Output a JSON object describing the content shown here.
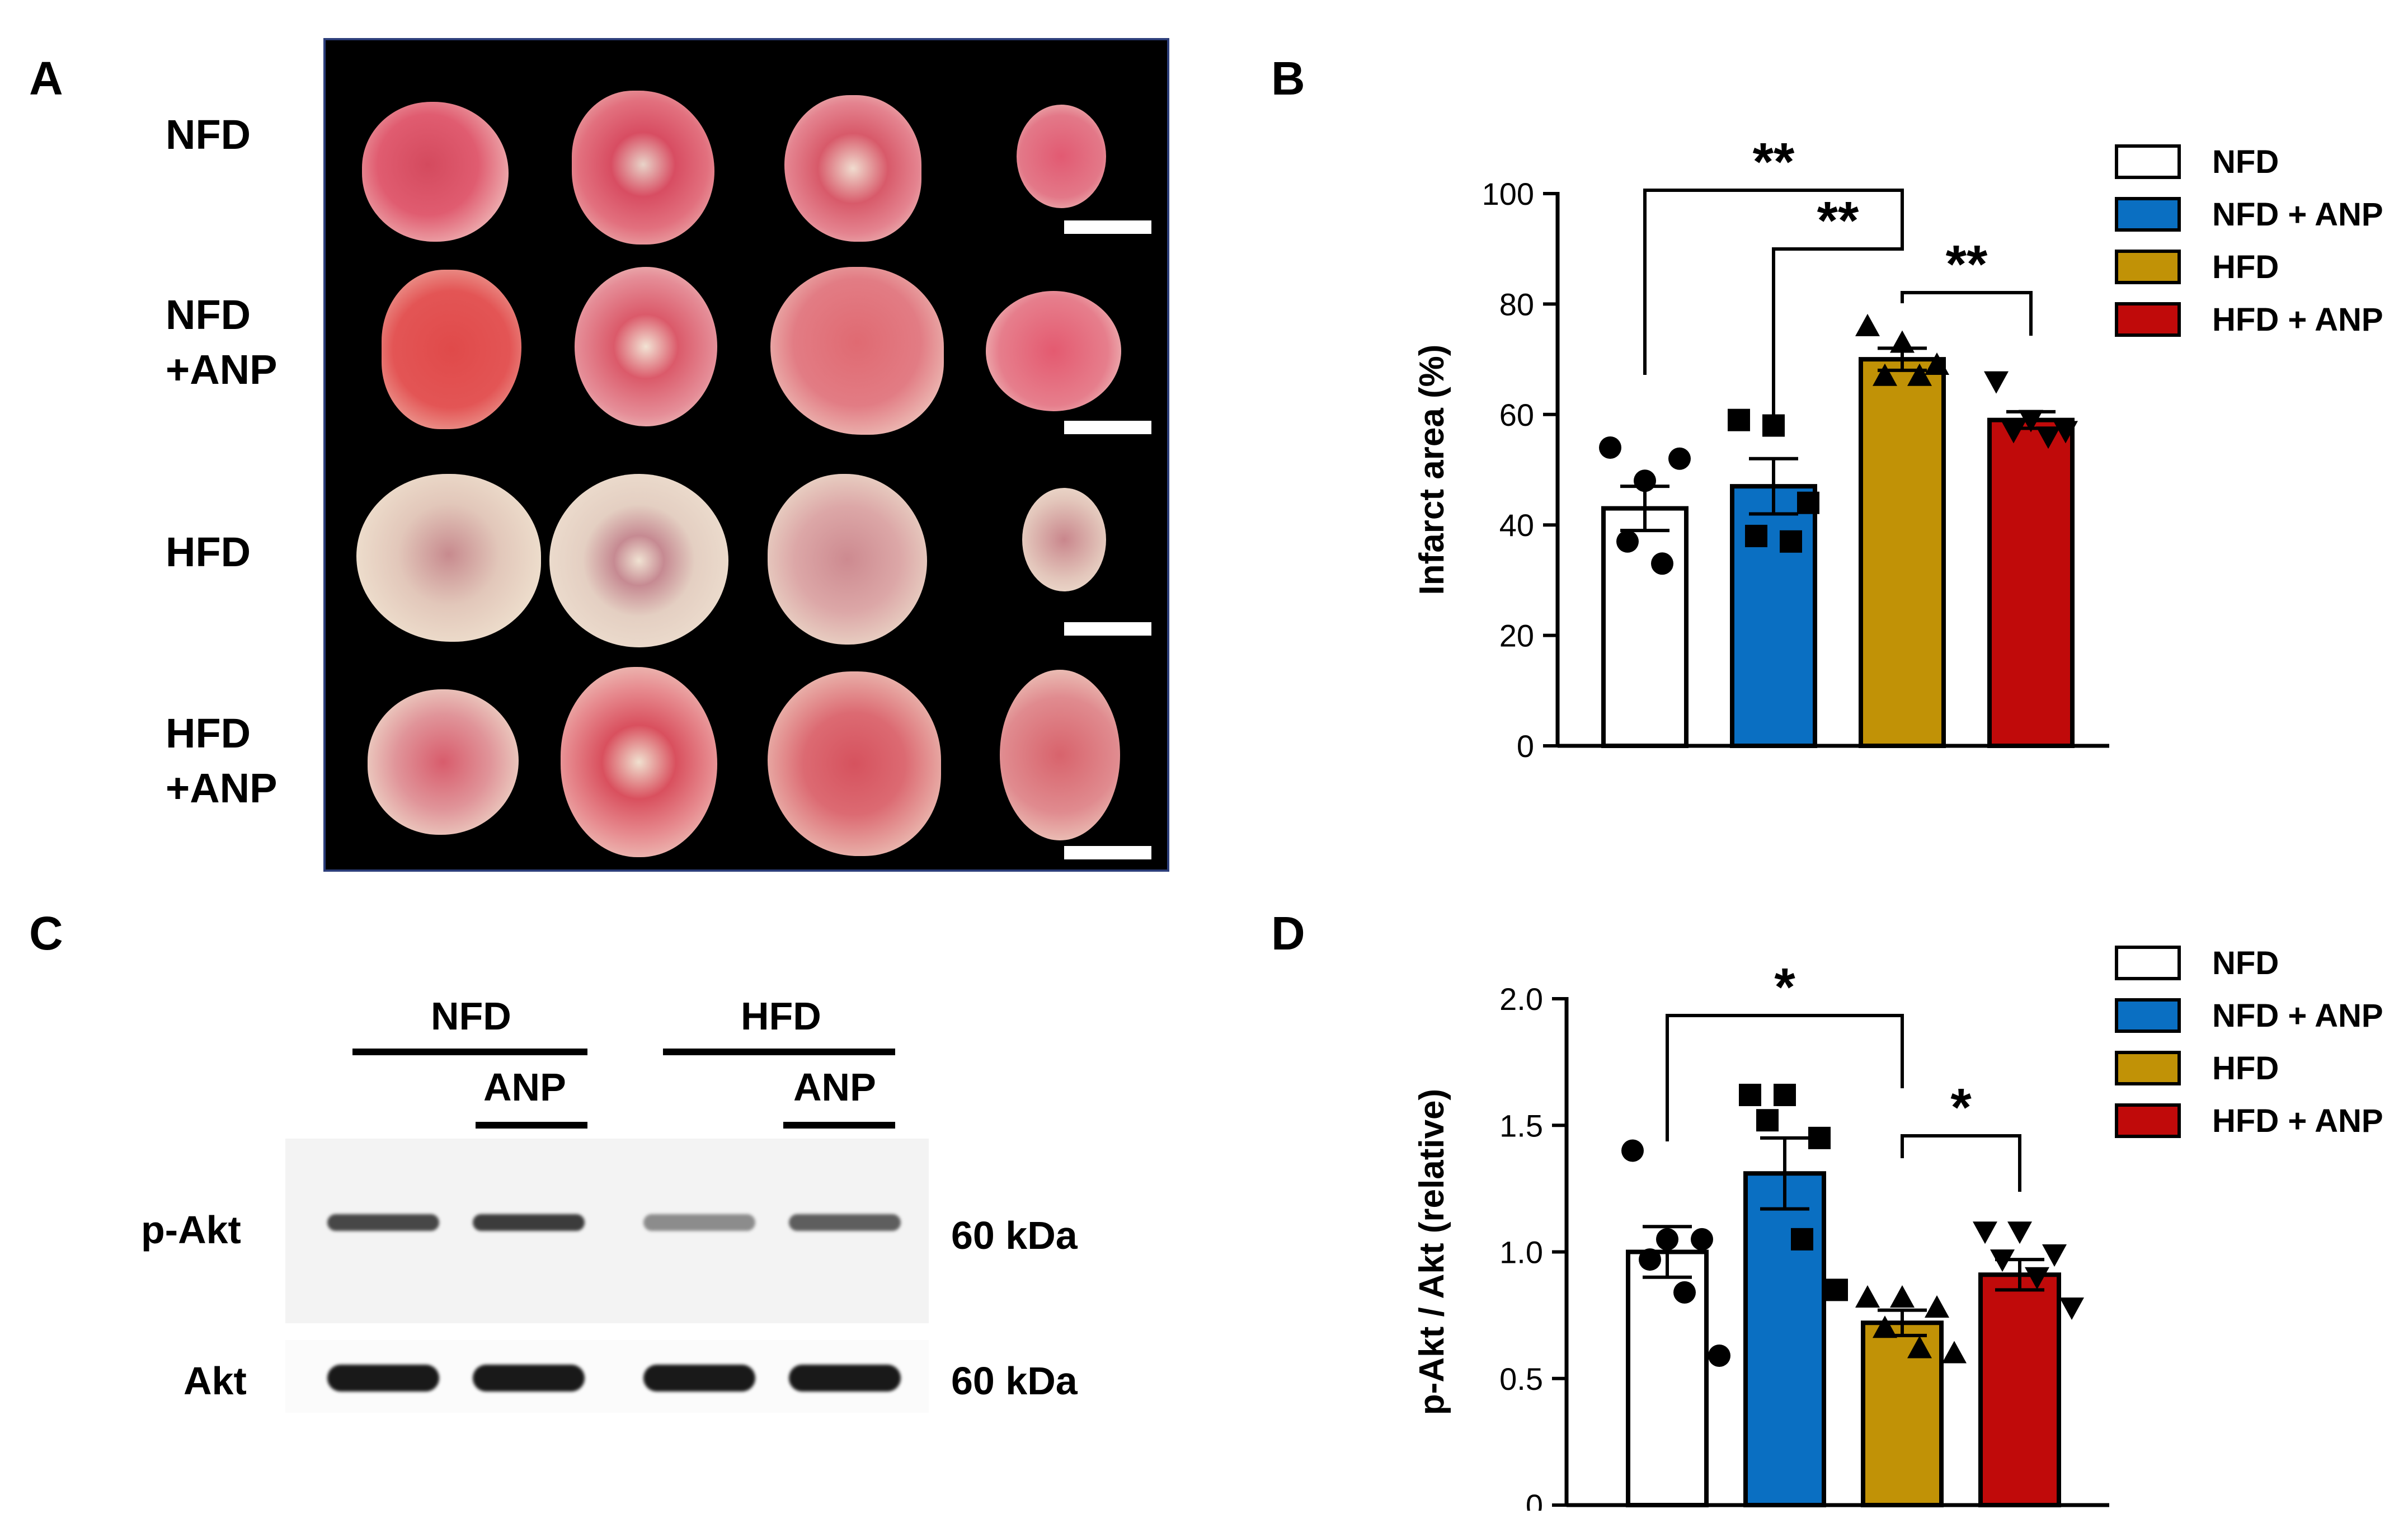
{
  "panels": {
    "a": {
      "letter": "A",
      "rows": [
        {
          "label": "NFD"
        },
        {
          "label": "NFD\n+ANP"
        },
        {
          "label": "HFD"
        },
        {
          "label": "HFD\n+ANP"
        }
      ]
    },
    "b": {
      "letter": "B"
    },
    "c": {
      "letter": "C",
      "groups": [
        "NFD",
        "HFD"
      ],
      "treatment": "ANP",
      "bands": [
        {
          "label": "p-Akt",
          "size": "60 kDa",
          "intensity": [
            0.8,
            0.85,
            0.5,
            0.7
          ]
        },
        {
          "label": "Akt",
          "size": "60 kDa",
          "intensity": [
            1.0,
            1.0,
            1.0,
            1.0
          ]
        }
      ]
    },
    "d": {
      "letter": "D"
    }
  },
  "legend": [
    {
      "label": "NFD",
      "color": "#ffffff"
    },
    {
      "label": "NFD + ANP",
      "color": "#0a6fc2"
    },
    {
      "label": "HFD",
      "color": "#c19206"
    },
    {
      "label": "HFD + ANP",
      "color": "#c00a0a"
    }
  ],
  "chart_data": [
    {
      "type": "bar",
      "panel": "B",
      "categories": [
        "NFD",
        "NFD + ANP",
        "HFD",
        "HFD + ANP"
      ],
      "values": [
        43,
        47,
        70,
        59
      ],
      "errors": [
        4,
        5,
        2,
        1.5
      ],
      "points": [
        [
          54,
          48,
          52,
          37,
          33
        ],
        [
          59,
          58,
          44,
          38,
          37
        ],
        [
          76,
          73,
          69,
          67,
          67
        ],
        [
          66,
          59,
          57,
          57,
          56
        ]
      ],
      "markers": [
        "circle",
        "square",
        "triangle-up",
        "triangle-down"
      ],
      "ylabel": "Infarct area (%)",
      "ylim": [
        0,
        100
      ],
      "yticks": [
        "0",
        "20",
        "40",
        "60",
        "80",
        "100"
      ],
      "significance": [
        {
          "from": 0,
          "to": 2,
          "label": "**"
        },
        {
          "from": 1,
          "to": 2,
          "label": "**"
        },
        {
          "from": 2,
          "to": 3,
          "label": "**"
        }
      ]
    },
    {
      "type": "bar",
      "panel": "D",
      "categories": [
        "NFD",
        "NFD + ANP",
        "HFD",
        "HFD + ANP"
      ],
      "values": [
        1.0,
        1.31,
        0.72,
        0.91
      ],
      "errors": [
        0.1,
        0.14,
        0.05,
        0.06
      ],
      "points": [
        [
          1.4,
          1.05,
          1.05,
          0.97,
          0.84,
          0.59
        ],
        [
          1.62,
          1.62,
          1.45,
          1.52,
          1.05,
          0.85
        ],
        [
          0.82,
          0.82,
          0.78,
          0.7,
          0.62,
          0.6
        ],
        [
          1.08,
          1.08,
          0.99,
          0.97,
          0.9,
          0.78
        ]
      ],
      "markers": [
        "circle",
        "square",
        "triangle-up",
        "triangle-down"
      ],
      "ylabel": "p-Akt / Akt (relative)",
      "ylim": [
        0,
        2.0
      ],
      "yticks": [
        "0",
        "0.5",
        "1.0",
        "1.5",
        "2.0"
      ],
      "significance": [
        {
          "from": 0,
          "to": 2,
          "label": "*"
        },
        {
          "from": 2,
          "to": 3,
          "label": "*"
        }
      ]
    }
  ]
}
